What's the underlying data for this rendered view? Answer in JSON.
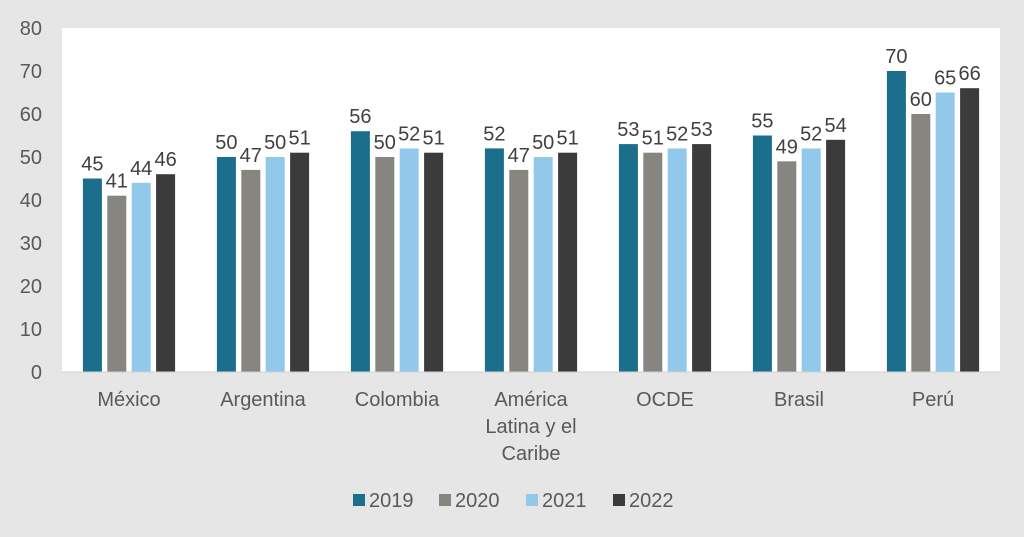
{
  "chart_data": {
    "type": "bar",
    "title": "",
    "xlabel": "",
    "ylabel": "",
    "ylim": [
      0,
      80
    ],
    "yticks": [
      0,
      10,
      20,
      30,
      40,
      50,
      60,
      70,
      80
    ],
    "grid": false,
    "legend_position": "bottom",
    "categories": [
      [
        "México"
      ],
      [
        "Argentina"
      ],
      [
        "Colombia"
      ],
      [
        "América",
        "Latina y el",
        "Caribe"
      ],
      [
        "OCDE"
      ],
      [
        "Brasil"
      ],
      [
        "Perú"
      ]
    ],
    "series": [
      {
        "name": "2019",
        "color": "#1b6f8c",
        "values": [
          45,
          50,
          56,
          52,
          53,
          55,
          70
        ]
      },
      {
        "name": "2020",
        "color": "#878580",
        "values": [
          41,
          47,
          50,
          47,
          51,
          49,
          60
        ]
      },
      {
        "name": "2021",
        "color": "#92c9ea",
        "values": [
          44,
          50,
          52,
          50,
          52,
          52,
          65
        ]
      },
      {
        "name": "2022",
        "color": "#3b3b3b",
        "values": [
          46,
          51,
          51,
          51,
          53,
          54,
          66
        ]
      }
    ]
  }
}
